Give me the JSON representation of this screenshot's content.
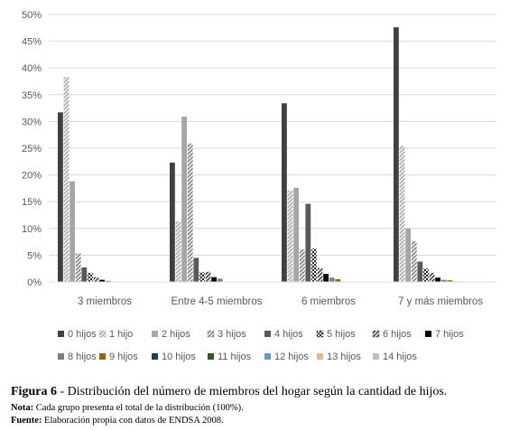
{
  "chart_data": {
    "type": "bar",
    "categories": [
      "3 miembros",
      "Entre 4-5 miembros",
      "6 miembros",
      "7 y más miembros"
    ],
    "y_ticks": [
      "0%",
      "5%",
      "10%",
      "15%",
      "20%",
      "25%",
      "30%",
      "35%",
      "40%",
      "45%",
      "50%"
    ],
    "ylim": [
      0,
      50
    ],
    "grid": true,
    "legend_position": "bottom",
    "series": [
      {
        "name": "0 hijos",
        "color": "#404040",
        "pattern": "solid",
        "values": [
          31.7,
          22.3,
          33.4,
          47.6
        ]
      },
      {
        "name": "1 hijo",
        "color": "#a6a6a6",
        "pattern": "hatch",
        "values": [
          38.3,
          11.3,
          17.1,
          25.4
        ]
      },
      {
        "name": "2 hijos",
        "color": "#a6a6a6",
        "pattern": "solid",
        "values": [
          18.8,
          30.9,
          17.6,
          10.0
        ]
      },
      {
        "name": "3 hijos",
        "color": "#7f7f7f",
        "pattern": "hatch",
        "values": [
          5.3,
          25.9,
          6.1,
          7.6
        ]
      },
      {
        "name": "4 hijos",
        "color": "#595959",
        "pattern": "solid",
        "values": [
          2.7,
          4.5,
          14.6,
          3.8
        ]
      },
      {
        "name": "5 hijos",
        "color": "#262626",
        "pattern": "checker",
        "values": [
          1.7,
          1.8,
          6.2,
          2.5
        ]
      },
      {
        "name": "6 hijos",
        "color": "#404040",
        "pattern": "hatch",
        "values": [
          0.9,
          1.9,
          2.6,
          1.7
        ]
      },
      {
        "name": "7 hijos",
        "color": "#000000",
        "pattern": "solid",
        "values": [
          0.4,
          0.9,
          1.5,
          0.8
        ]
      },
      {
        "name": "8 hijos",
        "color": "#7f7f7f",
        "pattern": "solid",
        "values": [
          0.2,
          0.6,
          0.8,
          0.4
        ]
      },
      {
        "name": "9 hijos",
        "color": "#9c6500",
        "pattern": "solid",
        "values": [
          0.0,
          0.0,
          0.5,
          0.3
        ]
      },
      {
        "name": "10 hijos",
        "color": "#1f3864",
        "pattern": "solid",
        "values": [
          0.0,
          0.0,
          0.0,
          0.1
        ]
      },
      {
        "name": "11 hijos",
        "color": "#375623",
        "pattern": "solid",
        "values": [
          0.0,
          0.0,
          0.0,
          0.0
        ]
      },
      {
        "name": "12 hijos",
        "color": "#5b9bd5",
        "pattern": "solid",
        "values": [
          0.0,
          0.0,
          0.0,
          0.0
        ]
      },
      {
        "name": "13 hijos",
        "color": "#f4b183",
        "pattern": "solid",
        "values": [
          0.0,
          0.0,
          0.0,
          0.0
        ]
      },
      {
        "name": "14 hijos",
        "color": "#bfbfbf",
        "pattern": "solid",
        "values": [
          0.0,
          0.0,
          0.0,
          0.0
        ]
      }
    ]
  },
  "caption": {
    "figure_label": "Figura 6",
    "figure_text": " - Distribución del número de miembros del hogar según la cantidad de hijos.",
    "note_label": "Nota:",
    "note_text": " Cada grupo presenta el total de la distribución (100%).",
    "source_label": "Fuente:",
    "source_text": " Elaboración propia con datos de ENDSA 2008."
  }
}
